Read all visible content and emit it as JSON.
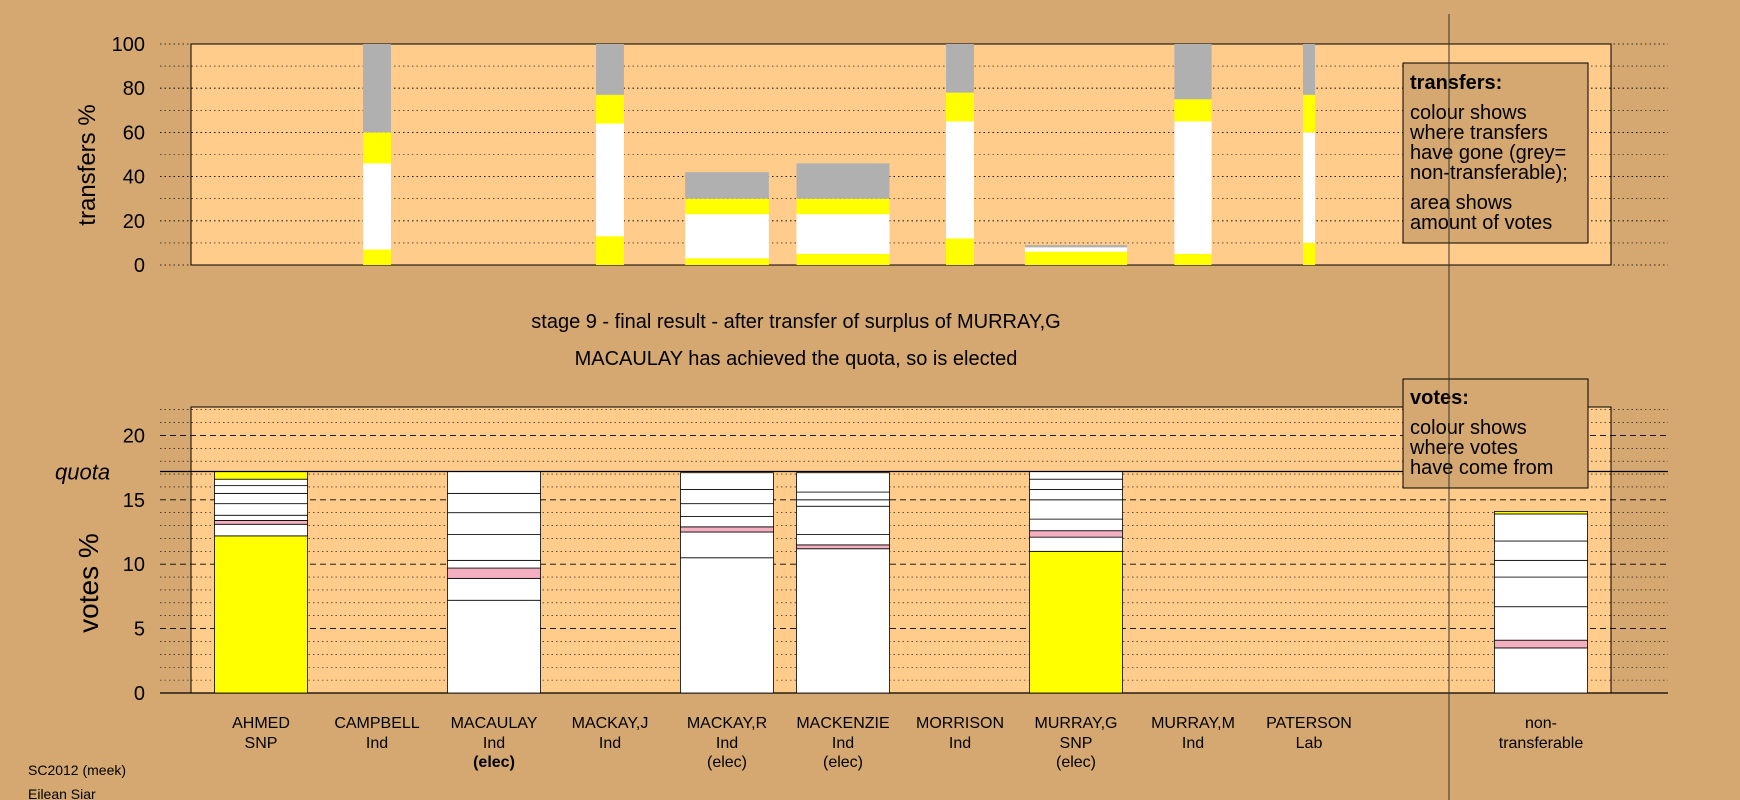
{
  "colors": {
    "page_background": "#d4a870",
    "plot_background": "#ffcc8c",
    "nontransferable": "#b0b0b0",
    "snp": "#ffff00",
    "ind": "#ffffff",
    "lab": "#f4b0c0",
    "gridline": "#000000"
  },
  "chart_data": [
    {
      "type": "bar",
      "id": "transfers",
      "ylabel": "transfers %",
      "ylim": [
        0,
        100
      ],
      "yticks": [
        0,
        20,
        40,
        60,
        80,
        100
      ],
      "grid": true,
      "legend": {
        "position": "top-right",
        "title": "transfers:",
        "lines": [
          "colour shows",
          "where transfers",
          "have gone (grey=",
          "non-transferable);",
          "",
          "area shows",
          "amount of votes"
        ]
      },
      "bars": [
        {
          "candidate": "CAMPBELL",
          "share": 0.3,
          "segments": [
            {
              "source": "AHMED",
              "party": "snp",
              "value": 7
            },
            {
              "source": "MACAULAY",
              "party": "ind",
              "value": 39
            },
            {
              "source": "MURRAY,G",
              "party": "snp",
              "value": 14
            },
            {
              "source": "non-transferable",
              "party": "nontransferable",
              "value": 40
            }
          ]
        },
        {
          "candidate": "MACKAY,J",
          "share": 0.3,
          "segments": [
            {
              "source": "AHMED",
              "party": "snp",
              "value": 13
            },
            {
              "source": "MACAULAY",
              "party": "ind",
              "value": 51
            },
            {
              "source": "MURRAY,G",
              "party": "snp",
              "value": 13
            },
            {
              "source": "non-transferable",
              "party": "nontransferable",
              "value": 23
            }
          ]
        },
        {
          "candidate": "MACKAY,R",
          "share": 0.9,
          "segments": [
            {
              "source": "AHMED",
              "party": "snp",
              "value": 3
            },
            {
              "source": "MACAULAY",
              "party": "ind",
              "value": 20
            },
            {
              "source": "MURRAY,G",
              "party": "snp",
              "value": 7
            },
            {
              "source": "non-transferable",
              "party": "nontransferable",
              "value": 12
            }
          ]
        },
        {
          "candidate": "MACKENZIE",
          "share": 1.0,
          "segments": [
            {
              "source": "AHMED",
              "party": "snp",
              "value": 5
            },
            {
              "source": "MACAULAY",
              "party": "ind",
              "value": 18
            },
            {
              "source": "MURRAY,G",
              "party": "snp",
              "value": 7
            },
            {
              "source": "non-transferable",
              "party": "nontransferable",
              "value": 16
            }
          ]
        },
        {
          "candidate": "MORRISON",
          "share": 0.3,
          "segments": [
            {
              "source": "AHMED",
              "party": "snp",
              "value": 12
            },
            {
              "source": "MACAULAY",
              "party": "ind",
              "value": 53
            },
            {
              "source": "MURRAY,G",
              "party": "snp",
              "value": 13
            },
            {
              "source": "non-transferable",
              "party": "nontransferable",
              "value": 22
            }
          ]
        },
        {
          "candidate": "MURRAY,G",
          "share": 1.1,
          "segments": [
            {
              "source": "AHMED",
              "party": "snp",
              "value": 6
            },
            {
              "source": "MACAULAY",
              "party": "ind",
              "value": 2
            },
            {
              "source": "non-transferable",
              "party": "nontransferable",
              "value": 1
            }
          ]
        },
        {
          "candidate": "MURRAY,M",
          "share": 0.4,
          "segments": [
            {
              "source": "AHMED",
              "party": "snp",
              "value": 5
            },
            {
              "source": "MACAULAY",
              "party": "ind",
              "value": 60
            },
            {
              "source": "MURRAY,G",
              "party": "snp",
              "value": 10
            },
            {
              "source": "non-transferable",
              "party": "nontransferable",
              "value": 25
            }
          ]
        },
        {
          "candidate": "PATERSON",
          "share": 0.13,
          "segments": [
            {
              "source": "AHMED",
              "party": "snp",
              "value": 10
            },
            {
              "source": "MACAULAY",
              "party": "ind",
              "value": 50
            },
            {
              "source": "MURRAY,G",
              "party": "snp",
              "value": 17
            },
            {
              "source": "non-transferable",
              "party": "nontransferable",
              "value": 23
            }
          ]
        }
      ]
    },
    {
      "type": "bar",
      "id": "votes",
      "ylabel": "votes %",
      "ylim": [
        0,
        22.5
      ],
      "yticks": [
        0,
        5,
        10,
        15,
        20
      ],
      "quota": 17.2,
      "quota_label": "quota",
      "grid": true,
      "legend": {
        "position": "top-right",
        "title": "votes:",
        "lines": [
          "colour shows",
          "where votes",
          "have come from"
        ]
      },
      "categories": [
        "AHMED",
        "CAMPBELL",
        "MACAULAY",
        "MACKAY,J",
        "MACKAY,R",
        "MACKENZIE",
        "MORRISON",
        "MURRAY,G",
        "MURRAY,M",
        "PATERSON",
        "non-transferable"
      ],
      "labels": [
        {
          "line1": "AHMED",
          "line2": "SNP",
          "line3": "",
          "bold3": false
        },
        {
          "line1": "CAMPBELL",
          "line2": "Ind",
          "line3": "",
          "bold3": false
        },
        {
          "line1": "MACAULAY",
          "line2": "Ind",
          "line3": "(elec)",
          "bold3": true
        },
        {
          "line1": "MACKAY,J",
          "line2": "Ind",
          "line3": "",
          "bold3": false
        },
        {
          "line1": "MACKAY,R",
          "line2": "Ind",
          "line3": "(elec)",
          "bold3": false
        },
        {
          "line1": "MACKENZIE",
          "line2": "Ind",
          "line3": "(elec)",
          "bold3": false
        },
        {
          "line1": "MORRISON",
          "line2": "Ind",
          "line3": "",
          "bold3": false
        },
        {
          "line1": "MURRAY,G",
          "line2": "SNP",
          "line3": "(elec)",
          "bold3": false
        },
        {
          "line1": "MURRAY,M",
          "line2": "Ind",
          "line3": "",
          "bold3": false
        },
        {
          "line1": "PATERSON",
          "line2": "Lab",
          "line3": "",
          "bold3": false
        },
        {
          "line1": "non-",
          "line2": "transferable",
          "line3": "",
          "bold3": false
        }
      ],
      "stacks": [
        [
          {
            "party": "snp",
            "value": 12.2
          },
          {
            "party": "ind",
            "value": 0.9
          },
          {
            "party": "lab",
            "value": 0.3
          },
          {
            "party": "ind",
            "value": 0.4
          },
          {
            "party": "ind",
            "value": 0.9
          },
          {
            "party": "ind",
            "value": 0.8
          },
          {
            "party": "ind",
            "value": 0.6
          },
          {
            "party": "ind",
            "value": 0.5
          },
          {
            "party": "snp",
            "value": 0.6
          }
        ],
        [],
        [
          {
            "party": "ind",
            "value": 7.2
          },
          {
            "party": "ind",
            "value": 1.7
          },
          {
            "party": "lab",
            "value": 0.8
          },
          {
            "party": "ind",
            "value": 0.6
          },
          {
            "party": "ind",
            "value": 2.0
          },
          {
            "party": "ind",
            "value": 1.7
          },
          {
            "party": "ind",
            "value": 1.5
          },
          {
            "party": "ind",
            "value": 1.7
          }
        ],
        [],
        [
          {
            "party": "ind",
            "value": 10.5
          },
          {
            "party": "ind",
            "value": 2.0
          },
          {
            "party": "lab",
            "value": 0.4
          },
          {
            "party": "ind",
            "value": 0.8
          },
          {
            "party": "ind",
            "value": 1.0
          },
          {
            "party": "ind",
            "value": 1.1
          },
          {
            "party": "ind",
            "value": 1.3
          }
        ],
        [
          {
            "party": "ind",
            "value": 11.2
          },
          {
            "party": "lab",
            "value": 0.3
          },
          {
            "party": "ind",
            "value": 0.8
          },
          {
            "party": "ind",
            "value": 2.2
          },
          {
            "party": "ind",
            "value": 0.5
          },
          {
            "party": "ind",
            "value": 0.6
          },
          {
            "party": "ind",
            "value": 1.5
          }
        ],
        [],
        [
          {
            "party": "snp",
            "value": 11.0
          },
          {
            "party": "ind",
            "value": 1.1
          },
          {
            "party": "lab",
            "value": 0.5
          },
          {
            "party": "ind",
            "value": 0.9
          },
          {
            "party": "ind",
            "value": 1.5
          },
          {
            "party": "ind",
            "value": 0.8
          },
          {
            "party": "ind",
            "value": 0.8
          },
          {
            "party": "ind",
            "value": 0.6
          }
        ],
        [],
        [],
        [
          {
            "party": "ind",
            "value": 3.5
          },
          {
            "party": "lab",
            "value": 0.6
          },
          {
            "party": "ind",
            "value": 2.6
          },
          {
            "party": "ind",
            "value": 2.3
          },
          {
            "party": "ind",
            "value": 1.3
          },
          {
            "party": "ind",
            "value": 1.5
          },
          {
            "party": "ind",
            "value": 2.1
          },
          {
            "party": "snp",
            "value": 0.2
          }
        ]
      ]
    }
  ],
  "titles": {
    "line1": "stage 9 - final result - after transfer of surplus of MURRAY,G",
    "line2": "MACAULAY has achieved the quota, so is elected"
  },
  "footer": {
    "system": "SC2012 (meek)",
    "ward": "Eilean Siar"
  }
}
